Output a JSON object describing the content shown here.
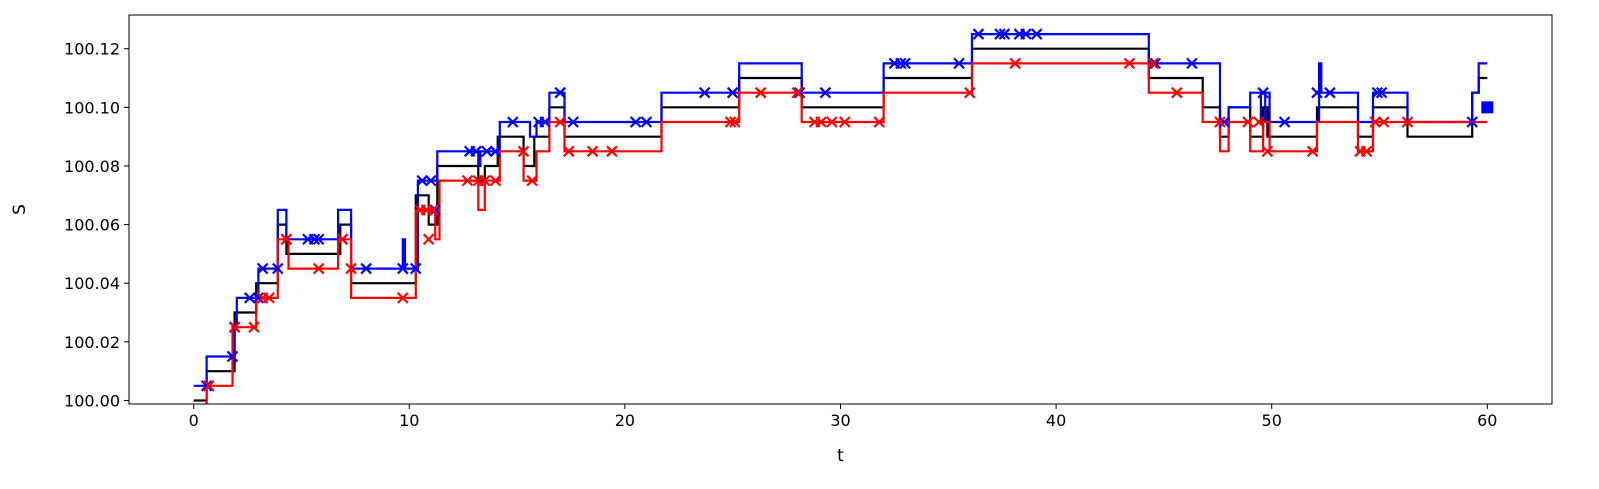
{
  "chart_data": {
    "type": "line",
    "title": "",
    "xlabel": "t",
    "ylabel": "S",
    "xlim": [
      -3,
      63
    ],
    "ylim": [
      99.9988,
      100.1315
    ],
    "grid": false,
    "x_ticks": [
      0,
      10,
      20,
      30,
      40,
      50,
      60
    ],
    "x_tick_labels": [
      "0",
      "10",
      "20",
      "30",
      "40",
      "50",
      "60"
    ],
    "y_ticks": [
      100.0,
      100.02,
      100.04,
      100.06,
      100.08,
      100.1,
      100.12
    ],
    "y_tick_labels": [
      "100.00",
      "100.02",
      "100.04",
      "100.06",
      "100.08",
      "100.10",
      "100.12"
    ],
    "colors": {
      "mid": "#000000",
      "ask": "#0000ff",
      "bid": "#ff0000"
    },
    "series": [
      {
        "style": "step",
        "color": "#000000",
        "points": [
          [
            0,
            100.0
          ],
          [
            0.6,
            100.01
          ],
          [
            1.9,
            100.03
          ],
          [
            2.9,
            100.04
          ],
          [
            3.9,
            100.06
          ],
          [
            4.3,
            100.05
          ],
          [
            6.8,
            100.06
          ],
          [
            7.3,
            100.04
          ],
          [
            10.3,
            100.07
          ],
          [
            10.9,
            100.06
          ],
          [
            11.3,
            100.08
          ],
          [
            13.2,
            100.075
          ],
          [
            13.5,
            100.08
          ],
          [
            14.1,
            100.09
          ],
          [
            15.3,
            100.08
          ],
          [
            15.8,
            100.09
          ],
          [
            16.5,
            100.1
          ],
          [
            17.2,
            100.09
          ],
          [
            21.7,
            100.1
          ],
          [
            25.3,
            100.11
          ],
          [
            28.2,
            100.1
          ],
          [
            32.0,
            100.11
          ],
          [
            36.1,
            100.12
          ],
          [
            44.3,
            100.11
          ],
          [
            46.8,
            100.1
          ],
          [
            47.6,
            100.09
          ],
          [
            48.0,
            100.1
          ],
          [
            49.0,
            100.09
          ],
          [
            49.6,
            100.1
          ],
          [
            49.8,
            100.09
          ],
          [
            52.1,
            100.1
          ],
          [
            54.0,
            100.09
          ],
          [
            54.7,
            100.1
          ],
          [
            56.3,
            100.09
          ],
          [
            59.3,
            100.105
          ],
          [
            59.6,
            100.11
          ],
          [
            60.0,
            100.11
          ]
        ]
      },
      {
        "style": "step",
        "color": "#0000ff",
        "points": [
          [
            0,
            100.005
          ],
          [
            0.6,
            100.015
          ],
          [
            1.9,
            100.025
          ],
          [
            2.0,
            100.035
          ],
          [
            3.0,
            100.045
          ],
          [
            3.9,
            100.065
          ],
          [
            4.3,
            100.055
          ],
          [
            6.7,
            100.065
          ],
          [
            7.3,
            100.045
          ],
          [
            9.7,
            100.055
          ],
          [
            9.8,
            100.045
          ],
          [
            10.4,
            100.075
          ],
          [
            11.3,
            100.085
          ],
          [
            13.2,
            100.08
          ],
          [
            13.3,
            100.085
          ],
          [
            14.2,
            100.095
          ],
          [
            15.6,
            100.09
          ],
          [
            15.9,
            100.095
          ],
          [
            16.5,
            100.105
          ],
          [
            17.2,
            100.095
          ],
          [
            21.7,
            100.105
          ],
          [
            25.3,
            100.115
          ],
          [
            28.2,
            100.105
          ],
          [
            32.0,
            100.115
          ],
          [
            36.1,
            100.125
          ],
          [
            43.4,
            100.125
          ],
          [
            44.3,
            100.115
          ],
          [
            47.6,
            100.095
          ],
          [
            48.0,
            100.1
          ],
          [
            49.0,
            100.105
          ],
          [
            49.5,
            100.095
          ],
          [
            49.7,
            100.105
          ],
          [
            49.9,
            100.095
          ],
          [
            52.2,
            100.115
          ],
          [
            52.3,
            100.105
          ],
          [
            54.0,
            100.095
          ],
          [
            54.7,
            100.105
          ],
          [
            56.3,
            100.095
          ],
          [
            59.3,
            100.105
          ],
          [
            59.6,
            100.115
          ],
          [
            60.0,
            100.115
          ]
        ]
      },
      {
        "style": "step",
        "color": "#ff0000",
        "points": [
          [
            0,
            99.995
          ],
          [
            0.6,
            100.005
          ],
          [
            1.8,
            100.025
          ],
          [
            2.9,
            100.035
          ],
          [
            3.9,
            100.055
          ],
          [
            4.4,
            100.045
          ],
          [
            6.7,
            100.055
          ],
          [
            7.3,
            100.035
          ],
          [
            10.3,
            100.065
          ],
          [
            11.2,
            100.055
          ],
          [
            11.4,
            100.075
          ],
          [
            13.2,
            100.065
          ],
          [
            13.5,
            100.075
          ],
          [
            14.2,
            100.085
          ],
          [
            15.3,
            100.075
          ],
          [
            15.9,
            100.085
          ],
          [
            16.5,
            100.095
          ],
          [
            17.2,
            100.085
          ],
          [
            21.7,
            100.095
          ],
          [
            25.3,
            100.105
          ],
          [
            28.2,
            100.095
          ],
          [
            32.0,
            100.105
          ],
          [
            36.1,
            100.115
          ],
          [
            44.3,
            100.105
          ],
          [
            46.8,
            100.095
          ],
          [
            47.6,
            100.085
          ],
          [
            48.0,
            100.095
          ],
          [
            49.0,
            100.085
          ],
          [
            49.6,
            100.095
          ],
          [
            49.9,
            100.085
          ],
          [
            52.1,
            100.095
          ],
          [
            54.0,
            100.085
          ],
          [
            54.7,
            100.095
          ],
          [
            56.3,
            100.095
          ],
          [
            60.0,
            100.095
          ]
        ]
      }
    ],
    "markers": [
      {
        "color": "#0000ff",
        "symbol": "x",
        "points": [
          [
            0.6,
            100.005
          ],
          [
            1.8,
            100.015
          ],
          [
            1.9,
            100.025
          ],
          [
            2.6,
            100.035
          ],
          [
            3.0,
            100.035
          ],
          [
            3.2,
            100.045
          ],
          [
            3.9,
            100.045
          ],
          [
            4.3,
            100.055
          ],
          [
            5.3,
            100.055
          ],
          [
            5.6,
            100.055
          ],
          [
            5.8,
            100.055
          ],
          [
            6.9,
            100.055
          ],
          [
            8.0,
            100.045
          ],
          [
            9.7,
            100.045
          ],
          [
            10.3,
            100.045
          ],
          [
            10.6,
            100.075
          ],
          [
            11.0,
            100.075
          ],
          [
            11.2,
            100.065
          ],
          [
            12.8,
            100.085
          ],
          [
            13.1,
            100.085
          ],
          [
            13.6,
            100.085
          ],
          [
            14.0,
            100.085
          ],
          [
            14.8,
            100.095
          ],
          [
            16.0,
            100.095
          ],
          [
            16.3,
            100.095
          ],
          [
            17.0,
            100.105
          ],
          [
            17.6,
            100.095
          ],
          [
            20.5,
            100.095
          ],
          [
            21.0,
            100.095
          ],
          [
            23.7,
            100.105
          ],
          [
            25.0,
            100.105
          ],
          [
            28.1,
            100.105
          ],
          [
            29.3,
            100.105
          ],
          [
            32.5,
            100.115
          ],
          [
            32.8,
            100.115
          ],
          [
            33.0,
            100.115
          ],
          [
            35.5,
            100.115
          ],
          [
            36.4,
            100.125
          ],
          [
            37.4,
            100.125
          ],
          [
            37.6,
            100.125
          ],
          [
            38.3,
            100.125
          ],
          [
            38.6,
            100.125
          ],
          [
            39.1,
            100.125
          ],
          [
            44.6,
            100.115
          ],
          [
            46.3,
            100.115
          ],
          [
            47.8,
            100.095
          ],
          [
            49.6,
            100.105
          ],
          [
            50.6,
            100.095
          ],
          [
            52.1,
            100.105
          ],
          [
            52.7,
            100.105
          ],
          [
            54.9,
            100.105
          ],
          [
            55.1,
            100.105
          ],
          [
            59.3,
            100.095
          ]
        ]
      },
      {
        "color": "#ff0000",
        "symbol": "x",
        "points": [
          [
            0.7,
            100.005
          ],
          [
            1.9,
            100.025
          ],
          [
            2.8,
            100.025
          ],
          [
            3.2,
            100.035
          ],
          [
            3.5,
            100.035
          ],
          [
            4.3,
            100.055
          ],
          [
            5.8,
            100.045
          ],
          [
            6.9,
            100.055
          ],
          [
            7.3,
            100.045
          ],
          [
            9.7,
            100.035
          ],
          [
            10.5,
            100.065
          ],
          [
            10.8,
            100.065
          ],
          [
            10.9,
            100.055
          ],
          [
            11.1,
            100.065
          ],
          [
            12.7,
            100.075
          ],
          [
            13.2,
            100.075
          ],
          [
            13.5,
            100.075
          ],
          [
            14.0,
            100.075
          ],
          [
            15.3,
            100.085
          ],
          [
            15.7,
            100.075
          ],
          [
            17.0,
            100.095
          ],
          [
            17.4,
            100.085
          ],
          [
            18.5,
            100.085
          ],
          [
            19.4,
            100.085
          ],
          [
            24.9,
            100.095
          ],
          [
            25.1,
            100.095
          ],
          [
            26.3,
            100.105
          ],
          [
            28.0,
            100.105
          ],
          [
            28.8,
            100.095
          ],
          [
            29.1,
            100.095
          ],
          [
            29.6,
            100.095
          ],
          [
            30.2,
            100.095
          ],
          [
            31.8,
            100.095
          ],
          [
            36.0,
            100.105
          ],
          [
            38.1,
            100.115
          ],
          [
            43.4,
            100.115
          ],
          [
            44.5,
            100.115
          ],
          [
            45.6,
            100.105
          ],
          [
            47.6,
            100.095
          ],
          [
            48.9,
            100.095
          ],
          [
            49.4,
            100.095
          ],
          [
            49.8,
            100.085
          ],
          [
            51.9,
            100.085
          ],
          [
            54.1,
            100.085
          ],
          [
            54.4,
            100.085
          ],
          [
            54.8,
            100.095
          ],
          [
            55.2,
            100.095
          ],
          [
            56.3,
            100.095
          ]
        ]
      },
      {
        "color": "#0000ff",
        "symbol": "square",
        "points": [
          [
            60.0,
            100.1
          ]
        ]
      }
    ]
  }
}
